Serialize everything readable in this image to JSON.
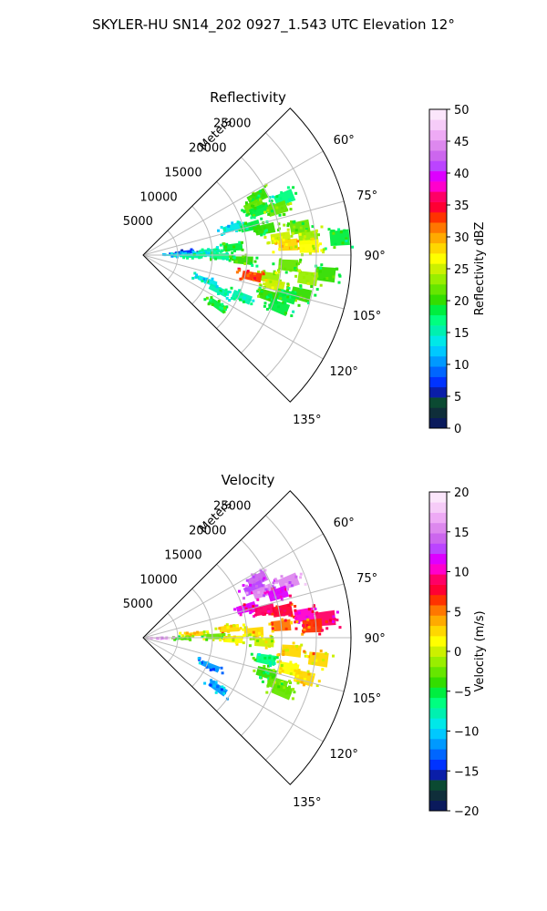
{
  "figure": {
    "suptitle": "SKYLER-HU  SN14_202  0927_1.543 UTC Elevation 12°"
  },
  "chart_data": [
    {
      "type": "heatmap",
      "subtype": "polar-sector",
      "title": "Reflectivity",
      "radial_label": "Meters",
      "radial_ticks": [
        5000,
        10000,
        15000,
        20000,
        25000
      ],
      "radial_tick_labels": [
        "5000",
        "10000",
        "15000",
        "20000",
        "25000"
      ],
      "rmax": 30000,
      "azimuth_range_deg": [
        45,
        135
      ],
      "azimuth_ticks": [
        60,
        75,
        90,
        105,
        120,
        135
      ],
      "azimuth_tick_labels": [
        "60°",
        "75°",
        "90°",
        "105°",
        "120°",
        "135°"
      ],
      "grid": true,
      "colorbar": {
        "label": "Reflectivity dBZ",
        "vmin": 0,
        "vmax": 50,
        "ticks": [
          0,
          5,
          10,
          15,
          20,
          25,
          30,
          35,
          40,
          45,
          50
        ],
        "tick_labels": [
          "0",
          "5",
          "10",
          "15",
          "20",
          "25",
          "30",
          "35",
          "40",
          "45",
          "50"
        ],
        "colors": [
          "#0a1a5c",
          "#0f2e3a",
          "#0b4a32",
          "#0a1ea8",
          "#0033ff",
          "#0066ff",
          "#0099ff",
          "#00c8ff",
          "#00e8e8",
          "#00f0b0",
          "#00ff80",
          "#00ee40",
          "#33dd00",
          "#66e600",
          "#99ee00",
          "#ccf000",
          "#ffff00",
          "#ffd700",
          "#ffaa00",
          "#ff7700",
          "#ff3300",
          "#ff0033",
          "#ff0066",
          "#ff00cc",
          "#dd00ff",
          "#bb44ff",
          "#cc66ee",
          "#dd88ee",
          "#eeaaf5",
          "#f6ccf8",
          "#fbe6fb"
        ]
      },
      "cells": [
        {
          "az": 63,
          "r": 18500,
          "value": 20
        },
        {
          "az": 66,
          "r": 17500,
          "value": 21
        },
        {
          "az": 69,
          "r": 18000,
          "value": 19
        },
        {
          "az": 68,
          "r": 22000,
          "value": 17
        },
        {
          "az": 71,
          "r": 20500,
          "value": 22
        },
        {
          "az": 73,
          "r": 13500,
          "value": 14
        },
        {
          "az": 75,
          "r": 16000,
          "value": 18
        },
        {
          "az": 78,
          "r": 18000,
          "value": 20
        },
        {
          "az": 80,
          "r": 23000,
          "value": 21
        },
        {
          "az": 83,
          "r": 20000,
          "value": 25
        },
        {
          "az": 84,
          "r": 24000,
          "value": 24
        },
        {
          "az": 85,
          "r": 28500,
          "value": 19
        },
        {
          "az": 86,
          "r": 21000,
          "value": 28
        },
        {
          "az": 87,
          "r": 24000,
          "value": 26
        },
        {
          "az": 85,
          "r": 13000,
          "value": 19
        },
        {
          "az": 86,
          "r": 6000,
          "value": 8
        },
        {
          "az": 87,
          "r": 9500,
          "value": 16
        },
        {
          "az": 89,
          "r": 8500,
          "value": 14
        },
        {
          "az": 90,
          "r": 4500,
          "value": 13
        },
        {
          "az": 91,
          "r": 11000,
          "value": 17
        },
        {
          "az": 91,
          "r": 7000,
          "value": 15
        },
        {
          "az": 93,
          "r": 14500,
          "value": 20
        },
        {
          "az": 94,
          "r": 21000,
          "value": 21
        },
        {
          "az": 96,
          "r": 26500,
          "value": 20
        },
        {
          "az": 98,
          "r": 24000,
          "value": 23
        },
        {
          "az": 100,
          "r": 18500,
          "value": 24
        },
        {
          "az": 101,
          "r": 16000,
          "value": 33
        },
        {
          "az": 103,
          "r": 19500,
          "value": 25
        },
        {
          "az": 104,
          "r": 23500,
          "value": 20
        },
        {
          "az": 106,
          "r": 21500,
          "value": 19
        },
        {
          "az": 108,
          "r": 19000,
          "value": 20
        },
        {
          "az": 111,
          "r": 21000,
          "value": 18
        },
        {
          "az": 112,
          "r": 10000,
          "value": 14
        },
        {
          "az": 115,
          "r": 12000,
          "value": 15
        },
        {
          "az": 124,
          "r": 13000,
          "value": 19
        },
        {
          "az": 113,
          "r": 15500,
          "value": 16
        }
      ]
    },
    {
      "type": "heatmap",
      "subtype": "polar-sector",
      "title": "Velocity",
      "radial_label": "Meters",
      "radial_ticks": [
        5000,
        10000,
        15000,
        20000,
        25000
      ],
      "radial_tick_labels": [
        "5000",
        "10000",
        "15000",
        "20000",
        "25000"
      ],
      "rmax": 30000,
      "azimuth_range_deg": [
        45,
        135
      ],
      "azimuth_ticks": [
        60,
        75,
        90,
        105,
        120,
        135
      ],
      "azimuth_tick_labels": [
        "60°",
        "75°",
        "90°",
        "105°",
        "120°",
        "135°"
      ],
      "grid": true,
      "colorbar": {
        "label": "Velocity (m/s)",
        "vmin": -20,
        "vmax": 20,
        "ticks": [
          -20,
          -15,
          -10,
          -5,
          0,
          5,
          10,
          15,
          20
        ],
        "tick_labels": [
          "−20",
          "−15",
          "−10",
          "−5",
          "0",
          "5",
          "10",
          "15",
          "20"
        ],
        "colors": [
          "#0a1a5c",
          "#0f2e3a",
          "#0b4a32",
          "#0a1ea8",
          "#0033ff",
          "#0066ff",
          "#0099ff",
          "#00c8ff",
          "#00e8e8",
          "#00f0b0",
          "#00ff80",
          "#00ee40",
          "#33dd00",
          "#66e600",
          "#99ee00",
          "#ccf000",
          "#ffff00",
          "#ffd700",
          "#ffaa00",
          "#ff7700",
          "#ff3300",
          "#ff0033",
          "#ff0066",
          "#ff00cc",
          "#dd00ff",
          "#bb44ff",
          "#cc66ee",
          "#dd88ee",
          "#eeaaf5",
          "#f6ccf8",
          "#fbe6fb"
        ]
      },
      "cells": [
        {
          "az": 63,
          "r": 18500,
          "value": 14
        },
        {
          "az": 66,
          "r": 17500,
          "value": 13
        },
        {
          "az": 69,
          "r": 18500,
          "value": 15
        },
        {
          "az": 69,
          "r": 22500,
          "value": 15
        },
        {
          "az": 72,
          "r": 20500,
          "value": 12
        },
        {
          "az": 74,
          "r": 15500,
          "value": 11
        },
        {
          "az": 77,
          "r": 18000,
          "value": 9
        },
        {
          "az": 79,
          "r": 20500,
          "value": 8
        },
        {
          "az": 82,
          "r": 23500,
          "value": 10
        },
        {
          "az": 84,
          "r": 26500,
          "value": 9
        },
        {
          "az": 85,
          "r": 20000,
          "value": 5
        },
        {
          "az": 86,
          "r": 24500,
          "value": 6
        },
        {
          "az": 84,
          "r": 12500,
          "value": 3
        },
        {
          "az": 86,
          "r": 7500,
          "value": 2
        },
        {
          "az": 87,
          "r": 16000,
          "value": 2
        },
        {
          "az": 89,
          "r": 10500,
          "value": -2
        },
        {
          "az": 91,
          "r": 5500,
          "value": -3
        },
        {
          "az": 91,
          "r": 13000,
          "value": 1
        },
        {
          "az": 92,
          "r": 17500,
          "value": 0
        },
        {
          "az": 95,
          "r": 21500,
          "value": 2
        },
        {
          "az": 97,
          "r": 25500,
          "value": 3
        },
        {
          "az": 100,
          "r": 18000,
          "value": -6
        },
        {
          "az": 102,
          "r": 21500,
          "value": 1
        },
        {
          "az": 104,
          "r": 24000,
          "value": 2
        },
        {
          "az": 106,
          "r": 18500,
          "value": -4
        },
        {
          "az": 109,
          "r": 20500,
          "value": -3
        },
        {
          "az": 111,
          "r": 21500,
          "value": -2
        },
        {
          "az": 113,
          "r": 10500,
          "value": -12
        },
        {
          "az": 124,
          "r": 13000,
          "value": -11
        },
        {
          "az": 93,
          "r": 2500,
          "value": 17
        }
      ]
    }
  ]
}
